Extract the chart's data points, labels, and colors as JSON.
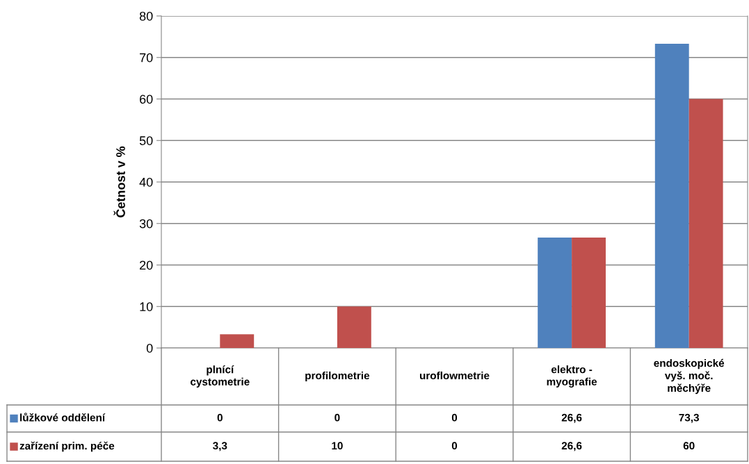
{
  "chart_data": {
    "type": "bar",
    "ylabel": "Četnost v %",
    "categories": [
      "plnící cystometrie",
      "profilometrie",
      "uroflowmetrie",
      "elektro - myografie",
      "endoskopické vyš. moč. měchýře"
    ],
    "series": [
      {
        "name": "lůžkové oddělení",
        "color": "#4f81bd",
        "values": [
          0,
          0,
          0,
          26.6,
          73.3
        ],
        "value_labels": [
          "0",
          "0",
          "0",
          "26,6",
          "73,3"
        ]
      },
      {
        "name": "zařízení prim. péče",
        "color": "#c0504d",
        "values": [
          3.3,
          10,
          0,
          26.6,
          60
        ],
        "value_labels": [
          "3,3",
          "10",
          "0",
          "26,6",
          "60"
        ]
      }
    ],
    "ylim": [
      0,
      80
    ],
    "yticks": [
      0,
      10,
      20,
      30,
      40,
      50,
      60,
      70,
      80
    ],
    "grid": "y",
    "legend": "bottom"
  }
}
